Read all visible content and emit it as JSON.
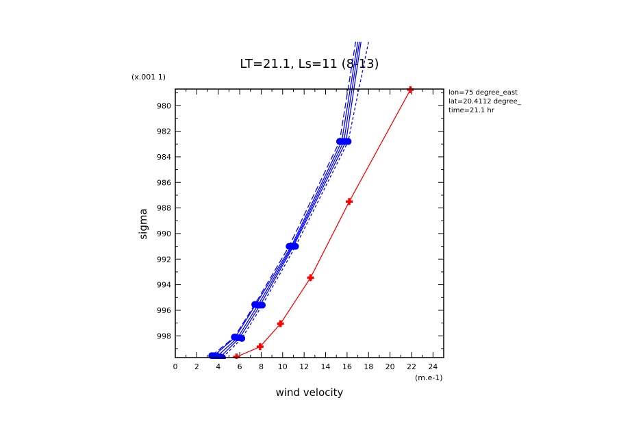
{
  "chart_data": {
    "type": "line",
    "title": "LT=21.1, Ls=11 (8-13)",
    "xlabel": "wind velocity",
    "ylabel": "sigma",
    "x_unit": "(m.e-1)",
    "y_unit": "(x.001 1)",
    "xlim": [
      0,
      25
    ],
    "ylim": [
      999.7,
      978.7
    ],
    "x_ticks": [
      "0",
      "2",
      "4",
      "6",
      "8",
      "10",
      "12",
      "14",
      "16",
      "18",
      "20",
      "22",
      "24"
    ],
    "y_ticks": [
      "980",
      "982",
      "984",
      "986",
      "988",
      "990",
      "992",
      "994",
      "996",
      "998"
    ],
    "annotations": [
      "lon=75 degree_east",
      "lat=20.4112 degree_",
      "time=21.1 hr"
    ],
    "colors": {
      "blue": "#0000ff",
      "red": "#ff0000"
    },
    "series": [
      {
        "color": "#0000ff",
        "style": "solid",
        "marker": "circle",
        "points": [
          [
            4.2,
            999.65
          ],
          [
            6.0,
            998.15
          ],
          [
            7.9,
            995.6
          ],
          [
            11.0,
            991.0
          ],
          [
            15.9,
            982.8
          ],
          [
            17.3,
            975.0
          ]
        ]
      },
      {
        "color": "#0000ff",
        "style": "solid",
        "marker": "circle",
        "points": [
          [
            3.6,
            999.55
          ],
          [
            5.6,
            998.1
          ],
          [
            7.5,
            995.55
          ],
          [
            10.8,
            991.0
          ],
          [
            15.5,
            982.8
          ],
          [
            17.0,
            975.0
          ]
        ]
      },
      {
        "color": "#0000ff",
        "style": "solid",
        "marker": "circle",
        "points": [
          [
            3.9,
            999.6
          ],
          [
            5.8,
            998.15
          ],
          [
            7.7,
            995.6
          ],
          [
            10.9,
            991.0
          ],
          [
            15.7,
            982.8
          ],
          [
            17.15,
            975.0
          ]
        ]
      },
      {
        "color": "#0000ff",
        "style": "dashed",
        "marker": "circle",
        "points": [
          [
            4.4,
            999.7
          ],
          [
            6.2,
            998.2
          ],
          [
            8.1,
            995.6
          ],
          [
            11.2,
            991.0
          ],
          [
            16.1,
            982.8
          ],
          [
            18.0,
            975.0
          ]
        ]
      },
      {
        "color": "#0000ff",
        "style": "longdash",
        "marker": "circle",
        "points": [
          [
            3.4,
            999.55
          ],
          [
            5.5,
            998.1
          ],
          [
            7.4,
            995.55
          ],
          [
            10.6,
            991.0
          ],
          [
            15.3,
            982.8
          ],
          [
            16.8,
            975.0
          ]
        ]
      },
      {
        "color": "#ff0000",
        "style": "solid",
        "marker": "plus",
        "points": [
          [
            5.7,
            999.65
          ],
          [
            7.9,
            998.85
          ],
          [
            9.8,
            997.05
          ],
          [
            12.6,
            993.45
          ],
          [
            16.2,
            987.5
          ],
          [
            21.9,
            978.75
          ]
        ]
      }
    ]
  }
}
